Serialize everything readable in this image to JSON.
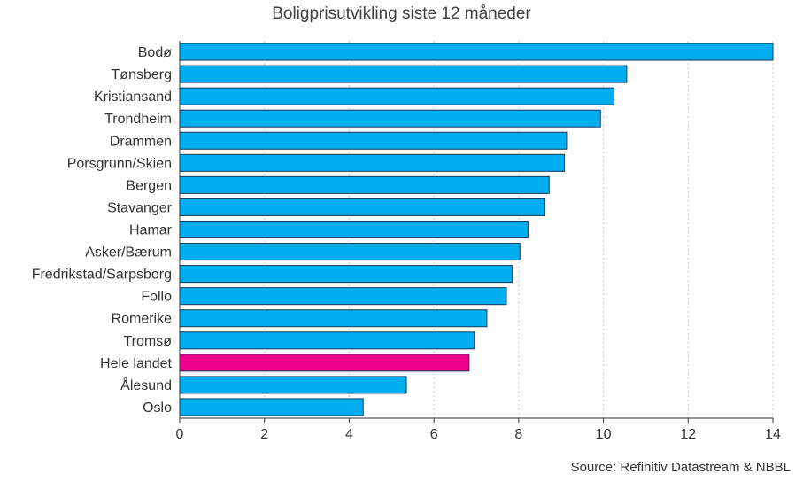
{
  "chart_data": {
    "type": "bar",
    "orientation": "horizontal",
    "title": "Boligprisutvikling siste 12 måneder",
    "categories": [
      "Bodø",
      "Tønsberg",
      "Kristiansand",
      "Trondheim",
      "Drammen",
      "Porsgrunn/Skien",
      "Bergen",
      "Stavanger",
      "Hamar",
      "Asker/Bærum",
      "Fredrikstad/Sarpsborg",
      "Follo",
      "Romerike",
      "Tromsø",
      "Hele landet",
      "Ålesund",
      "Oslo"
    ],
    "values": [
      14.0,
      10.55,
      10.25,
      9.93,
      9.13,
      9.08,
      8.72,
      8.62,
      8.22,
      8.03,
      7.85,
      7.71,
      7.25,
      6.95,
      6.83,
      5.35,
      4.33
    ],
    "highlight": "Hele landet",
    "xlim": [
      0,
      14
    ],
    "xticks": [
      0,
      2,
      4,
      6,
      8,
      10,
      12,
      14
    ],
    "grid": "vertical dotted",
    "colors": {
      "bar": "#00aeef",
      "highlight": "#ec008c",
      "bar_edge": "#1a3a5a",
      "grid": "#c8c8c8",
      "axis": "#333333"
    }
  },
  "source": "Source: Refinitiv Datastream & NBBL"
}
